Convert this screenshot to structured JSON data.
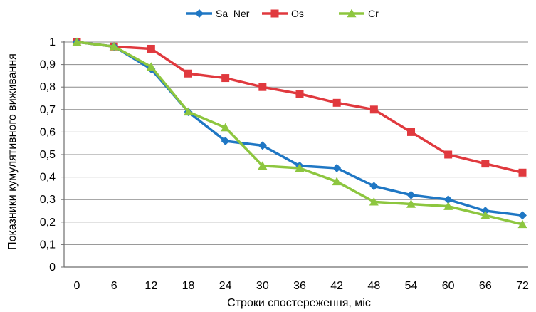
{
  "chart_data": {
    "type": "line",
    "title": "",
    "xlabel": "Строки спостереження,  міс",
    "ylabel": "Показники кумулятивного виживання",
    "x": [
      0,
      6,
      12,
      18,
      24,
      30,
      36,
      42,
      48,
      54,
      60,
      66,
      72
    ],
    "x_tick_labels": [
      "0",
      "6",
      "12",
      "18",
      "24",
      "30",
      "36",
      "42",
      "48",
      "54",
      "60",
      "66",
      "72"
    ],
    "ylim": [
      0,
      1
    ],
    "y_ticks": [
      0,
      0.1,
      0.2,
      0.3,
      0.4,
      0.5,
      0.6,
      0.7,
      0.8,
      0.9,
      1
    ],
    "y_tick_labels": [
      "0",
      "0,1",
      "0,2",
      "0,3",
      "0,4",
      "0,5",
      "0,6",
      "0,7",
      "0,8",
      "0,9",
      "1"
    ],
    "grid": "horizontal",
    "legend_position": "top",
    "series": [
      {
        "name": "Sa_Ner",
        "color": "#1f77c4",
        "marker": "diamond",
        "values": [
          1.0,
          0.98,
          0.88,
          0.69,
          0.56,
          0.54,
          0.45,
          0.44,
          0.36,
          0.32,
          0.3,
          0.25,
          0.23
        ]
      },
      {
        "name": "Os",
        "color": "#e0393e",
        "marker": "square",
        "values": [
          1.0,
          0.98,
          0.97,
          0.86,
          0.84,
          0.8,
          0.77,
          0.73,
          0.7,
          0.6,
          0.5,
          0.46,
          0.42
        ]
      },
      {
        "name": "Cr",
        "color": "#8dc63f",
        "marker": "triangle",
        "values": [
          1.0,
          0.98,
          0.89,
          0.69,
          0.62,
          0.45,
          0.44,
          0.38,
          0.29,
          0.28,
          0.27,
          0.23,
          0.19
        ]
      }
    ]
  }
}
